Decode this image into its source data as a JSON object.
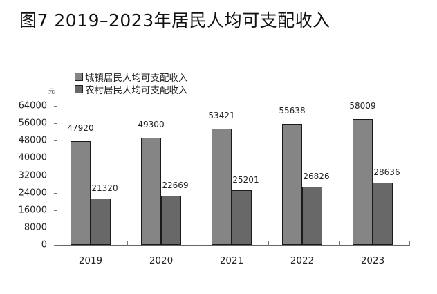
{
  "title": "图7  2019–2023年居民人均可支配收入",
  "unit": "元",
  "legend": [
    {
      "label": "城镇居民人均可支配收入",
      "color": "#858585"
    },
    {
      "label": "农村居民人均可支配收入",
      "color": "#686868"
    }
  ],
  "y_ticks": [
    "64000",
    "56000",
    "48000",
    "40000",
    "32000",
    "24000",
    "16000",
    "8000",
    "0"
  ],
  "chart_data": {
    "type": "bar",
    "title": "图7  2019–2023年居民人均可支配收入",
    "xlabel": "",
    "ylabel": "元",
    "ylim": [
      0,
      64000
    ],
    "y_ticks": [
      0,
      8000,
      16000,
      24000,
      32000,
      40000,
      48000,
      56000,
      64000
    ],
    "grid": false,
    "legend_position": "top-left",
    "categories": [
      "2019",
      "2020",
      "2021",
      "2022",
      "2023"
    ],
    "series": [
      {
        "name": "城镇居民人均可支配收入",
        "values": [
          47920,
          49300,
          53421,
          55638,
          58009
        ],
        "color": "#858585"
      },
      {
        "name": "农村居民人均可支配收入",
        "values": [
          21320,
          22669,
          25201,
          26826,
          28636
        ],
        "color": "#686868"
      }
    ]
  }
}
